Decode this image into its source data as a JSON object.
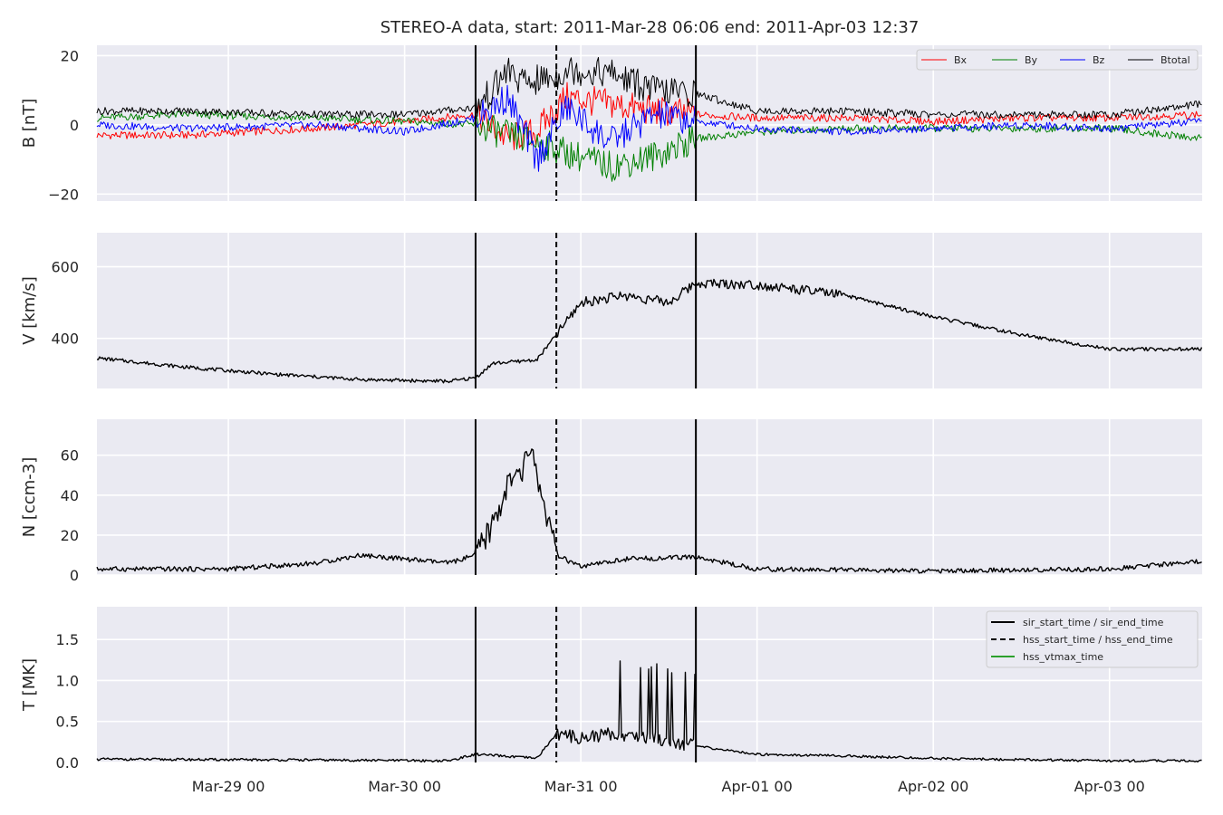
{
  "chart_data": {
    "type": "line",
    "title": "STEREO-A data, start: 2011-Mar-28 06:06  end: 2011-Apr-03 12:37",
    "xlim": [
      "2011-03-28T06:06",
      "2011-04-03T12:37"
    ],
    "x_ticks": [
      "Mar-29 00",
      "Mar-30 00",
      "Mar-31 00",
      "Apr-01 00",
      "Apr-02 00",
      "Apr-03 00"
    ],
    "grid": true,
    "event_lines": {
      "sir_start_time": "2011-03-30T09:40",
      "hss_start_time": "2011-03-30T20:40",
      "sir_end_time": "2011-03-31T15:40"
    },
    "colors": {
      "Bx": "#ff0000",
      "By": "#008000",
      "Bz": "#0000ff",
      "Btotal": "#000000",
      "hss_vtmax_time": "#2ca02c",
      "axes_bg": "#eaeaf2"
    },
    "panels": [
      {
        "ylabel": "B [nT]",
        "ylim": [
          -22,
          23
        ],
        "yticks": [
          -20,
          0,
          20
        ],
        "legend_position": "top-right",
        "series": [
          {
            "name": "Bx",
            "x": [
              "2011-03-28T06:06",
              "2011-03-28T18:00",
              "2011-03-29T12:00",
              "2011-03-30T00:00",
              "2011-03-30T09:40",
              "2011-03-30T14:00",
              "2011-03-30T18:00",
              "2011-03-30T22:00",
              "2011-03-31T04:00",
              "2011-03-31T10:00",
              "2011-03-31T15:40",
              "2011-04-01T00:00",
              "2011-04-01T12:00",
              "2011-04-02T00:00",
              "2011-04-02T12:00",
              "2011-04-03T00:00",
              "2011-04-03T12:37"
            ],
            "y": [
              -3,
              -3,
              -1,
              1,
              3,
              -4,
              -2,
              8,
              6,
              4,
              3,
              2,
              2,
              1,
              2,
              2,
              3
            ]
          },
          {
            "name": "By",
            "x": [
              "2011-03-28T06:06",
              "2011-03-28T18:00",
              "2011-03-29T12:00",
              "2011-03-30T00:00",
              "2011-03-30T09:40",
              "2011-03-30T14:00",
              "2011-03-30T18:00",
              "2011-03-30T22:00",
              "2011-03-31T04:00",
              "2011-03-31T10:00",
              "2011-03-31T15:40",
              "2011-04-01T00:00",
              "2011-04-01T12:00",
              "2011-04-02T00:00",
              "2011-04-02T12:00",
              "2011-04-03T00:00",
              "2011-04-03T12:37"
            ],
            "y": [
              2,
              3,
              2,
              1,
              0,
              -3,
              -5,
              -8,
              -12,
              -9,
              -4,
              -2,
              -1,
              -1,
              -1,
              -1,
              -4
            ]
          },
          {
            "name": "Bz",
            "x": [
              "2011-03-28T06:06",
              "2011-03-28T18:00",
              "2011-03-29T12:00",
              "2011-03-30T00:00",
              "2011-03-30T09:40",
              "2011-03-30T14:00",
              "2011-03-30T18:00",
              "2011-03-30T22:00",
              "2011-03-31T04:00",
              "2011-03-31T10:00",
              "2011-03-31T15:40",
              "2011-04-01T00:00",
              "2011-04-01T12:00",
              "2011-04-02T00:00",
              "2011-04-02T12:00",
              "2011-04-03T00:00",
              "2011-04-03T12:37"
            ],
            "y": [
              0,
              -1,
              0,
              -2,
              2,
              8,
              -10,
              5,
              -5,
              3,
              1,
              -1,
              -2,
              -1,
              0,
              -1,
              1
            ]
          },
          {
            "name": "Btotal",
            "x": [
              "2011-03-28T06:06",
              "2011-03-28T18:00",
              "2011-03-29T12:00",
              "2011-03-30T00:00",
              "2011-03-30T09:40",
              "2011-03-30T12:00",
              "2011-03-30T14:00",
              "2011-03-30T16:00",
              "2011-03-30T20:40",
              "2011-03-30T22:00",
              "2011-03-31T04:00",
              "2011-03-31T10:00",
              "2011-03-31T15:40",
              "2011-04-01T00:00",
              "2011-04-01T12:00",
              "2011-04-02T00:00",
              "2011-04-02T12:00",
              "2011-04-03T00:00",
              "2011-04-03T12:37"
            ],
            "y": [
              4,
              4,
              3,
              3,
              5,
              10,
              16,
              12,
              14,
              16,
              15,
              10,
              9,
              4,
              4,
              3,
              3,
              3,
              6
            ]
          }
        ]
      },
      {
        "ylabel": "V [km/s]",
        "ylim": [
          260,
          695
        ],
        "yticks": [
          400,
          600
        ],
        "series": [
          {
            "name": "V",
            "x": [
              "2011-03-28T06:06",
              "2011-03-28T18:00",
              "2011-03-29T06:00",
              "2011-03-29T18:00",
              "2011-03-30T06:00",
              "2011-03-30T09:40",
              "2011-03-30T12:00",
              "2011-03-30T18:00",
              "2011-03-30T20:40",
              "2011-03-31T00:00",
              "2011-03-31T06:00",
              "2011-03-31T12:00",
              "2011-03-31T15:40",
              "2011-04-01T00:00",
              "2011-04-01T12:00",
              "2011-04-02T00:00",
              "2011-04-02T12:00",
              "2011-04-03T00:00",
              "2011-04-03T12:37"
            ],
            "y": [
              345,
              320,
              300,
              285,
              280,
              290,
              330,
              340,
              410,
              500,
              520,
              500,
              555,
              550,
              520,
              460,
              410,
              370,
              370
            ]
          }
        ]
      },
      {
        "ylabel": "N [ccm-3]",
        "ylim": [
          0,
          78
        ],
        "yticks": [
          0,
          20,
          40,
          60
        ],
        "series": [
          {
            "name": "N",
            "x": [
              "2011-03-28T06:06",
              "2011-03-29T00:00",
              "2011-03-29T12:00",
              "2011-03-29T18:00",
              "2011-03-30T06:00",
              "2011-03-30T09:40",
              "2011-03-30T12:00",
              "2011-03-30T14:00",
              "2011-03-30T16:00",
              "2011-03-30T17:00",
              "2011-03-30T20:40",
              "2011-03-31T00:00",
              "2011-03-31T06:00",
              "2011-03-31T15:40",
              "2011-04-01T00:00",
              "2011-04-02T00:00",
              "2011-04-03T00:00",
              "2011-04-03T12:37"
            ],
            "y": [
              3,
              3,
              6,
              10,
              6,
              10,
              25,
              45,
              50,
              65,
              10,
              4,
              8,
              9,
              3,
              2,
              3,
              7
            ]
          }
        ]
      },
      {
        "ylabel": "T [MK]",
        "ylim": [
          0,
          1.9
        ],
        "yticks": [
          0.0,
          0.5,
          1.0,
          1.5
        ],
        "legend_position": "top-right",
        "legend": [
          "sir_start_time / sir_end_time",
          "hss_start_time / hss_end_time",
          "hss_vtmax_time"
        ],
        "series": [
          {
            "name": "T",
            "x": [
              "2011-03-28T06:06",
              "2011-03-29T12:00",
              "2011-03-30T06:00",
              "2011-03-30T09:40",
              "2011-03-30T18:00",
              "2011-03-30T20:40",
              "2011-03-31T00:00",
              "2011-03-31T04:00",
              "2011-03-31T10:00",
              "2011-03-31T15:40",
              "2011-04-01T00:00",
              "2011-04-01T12:00",
              "2011-04-02T00:00",
              "2011-04-03T00:00",
              "2011-04-03T12:37"
            ],
            "y": [
              0.04,
              0.03,
              0.02,
              0.1,
              0.05,
              0.35,
              0.3,
              0.35,
              0.3,
              0.2,
              0.1,
              0.08,
              0.05,
              0.02,
              0.02
            ]
          }
        ]
      }
    ]
  }
}
